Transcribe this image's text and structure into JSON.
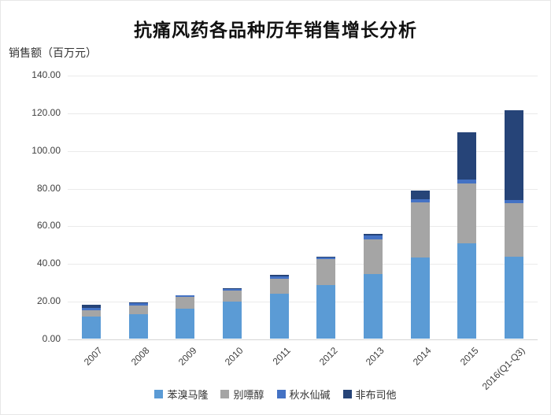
{
  "title": "抗痛风药各品种历年销售增长分析",
  "chart_data": {
    "type": "bar",
    "stacked": true,
    "title": "抗痛风药各品种历年销售增长分析",
    "ylabel": "销售额（百万元）",
    "xlabel": "",
    "ylim": [
      0,
      140
    ],
    "ytick_step": 20,
    "ytick_format": "two_decimals",
    "grid": true,
    "legend_position": "bottom",
    "categories": [
      "2007",
      "2008",
      "2009",
      "2010",
      "2011",
      "2012",
      "2013",
      "2014",
      "2015",
      "2016(Q1-Q3)"
    ],
    "series": [
      {
        "name": "苯溴马隆",
        "color": "#5B9BD5",
        "values": [
          11.5,
          13.0,
          16.0,
          19.5,
          24.0,
          28.6,
          34.2,
          43.2,
          50.6,
          43.5
        ]
      },
      {
        "name": "别嘌醇",
        "color": "#A5A5A5",
        "values": [
          3.4,
          4.4,
          6.0,
          6.2,
          7.8,
          13.5,
          18.5,
          29.3,
          31.7,
          28.5
        ]
      },
      {
        "name": "秋水仙碱",
        "color": "#4472C4",
        "values": [
          1.4,
          1.3,
          1.0,
          0.8,
          1.2,
          0.9,
          2.2,
          1.5,
          2.1,
          1.7
        ]
      },
      {
        "name": "非布司他",
        "color": "#264478",
        "values": [
          1.5,
          0.4,
          0.2,
          0.3,
          0.8,
          0.5,
          0.8,
          4.7,
          25.1,
          47.5
        ]
      }
    ]
  }
}
